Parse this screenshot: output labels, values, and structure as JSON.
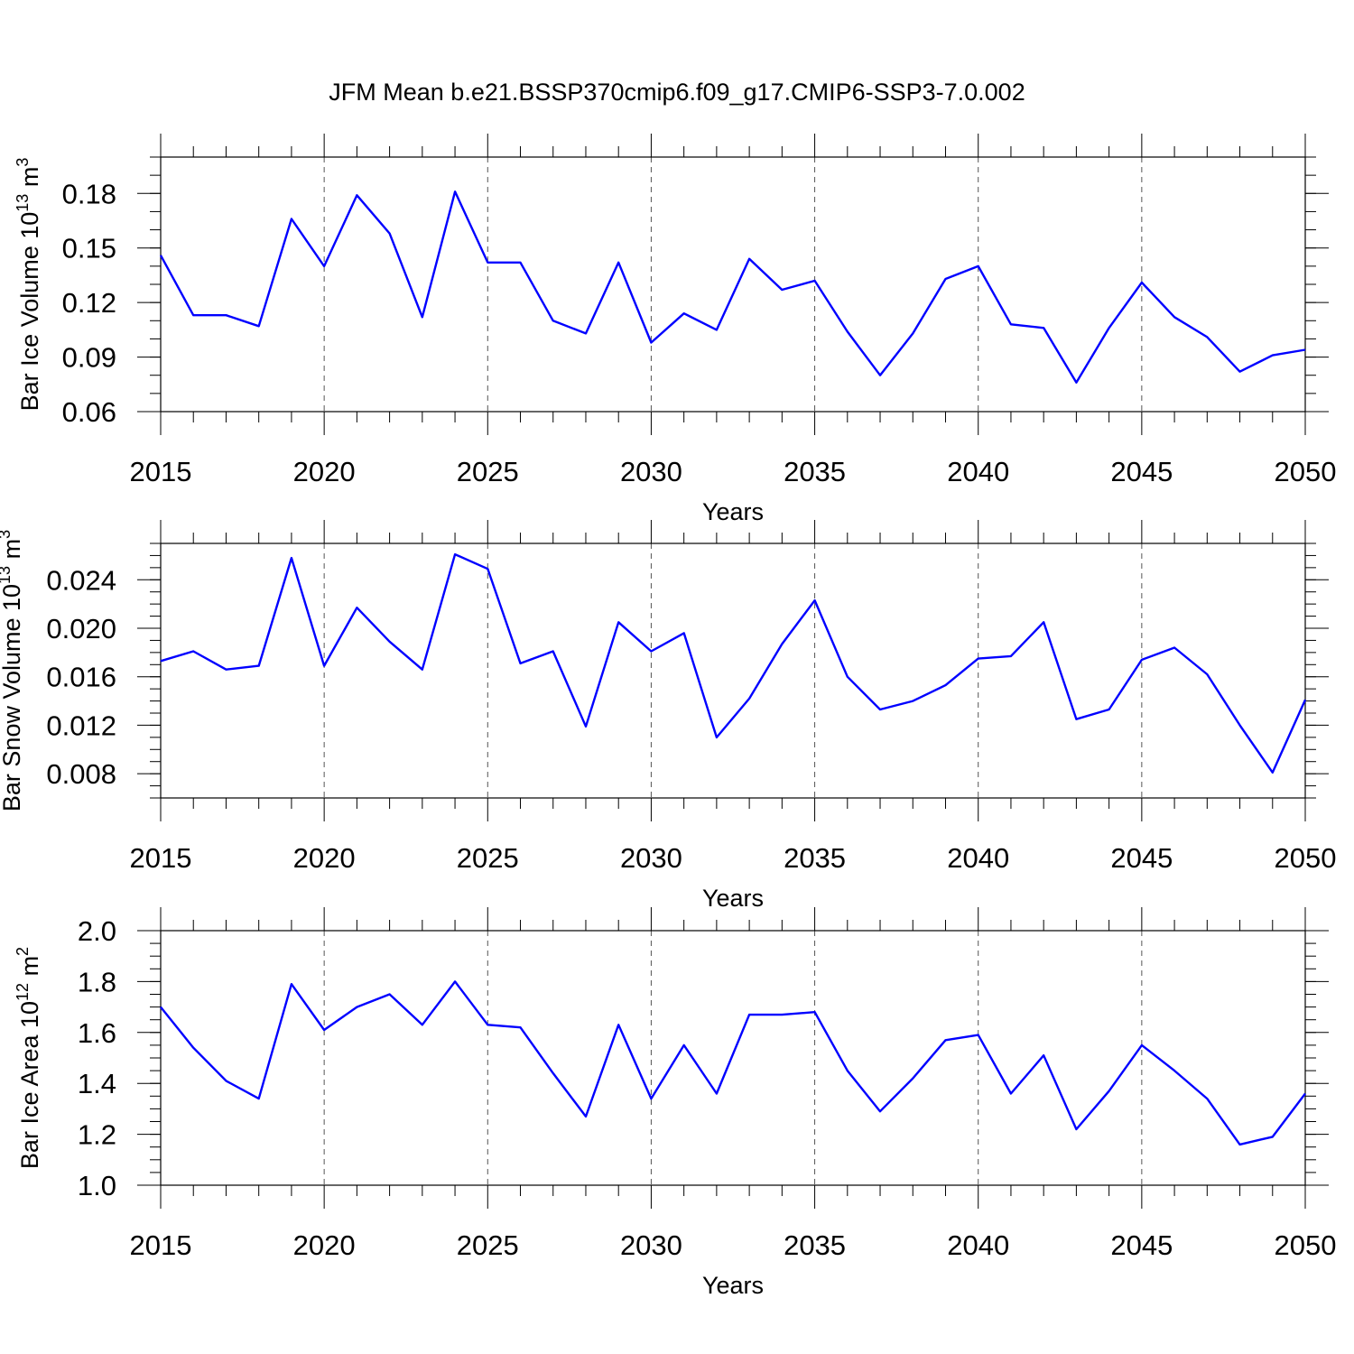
{
  "title": "JFM Mean b.e21.BSSP370cmip6.f09_g17.CMIP6-SSP3-7.0.002",
  "colors": {
    "line": "#0000ff",
    "axis": "#000000",
    "grid": "#555555"
  },
  "chart_data": [
    {
      "type": "line",
      "ylabel": {
        "text": "Bar Ice Volume 10",
        "sup": "13",
        "unit": " m",
        "unit_sup": "3"
      },
      "xlabel": "Years",
      "xlim": [
        2015,
        2050
      ],
      "ylim": [
        0.06,
        0.2
      ],
      "yticks": [
        0.06,
        0.09,
        0.12,
        0.15,
        0.18
      ],
      "ytick_labels": [
        "0.06",
        "0.09",
        "0.12",
        "0.15",
        "0.18"
      ],
      "yminor": 0.01,
      "xticks": [
        2015,
        2020,
        2025,
        2030,
        2035,
        2040,
        2045,
        2050
      ],
      "xtick_labels": [
        "2015",
        "2020",
        "2025",
        "2030",
        "2035",
        "2040",
        "2045",
        "2050"
      ],
      "grid": "vertical dashed at major x ticks",
      "x": [
        2015,
        2016,
        2017,
        2018,
        2019,
        2020,
        2021,
        2022,
        2023,
        2024,
        2025,
        2026,
        2027,
        2028,
        2029,
        2030,
        2031,
        2032,
        2033,
        2034,
        2035,
        2036,
        2037,
        2038,
        2039,
        2040,
        2041,
        2042,
        2043,
        2044,
        2045,
        2046,
        2047,
        2048,
        2049,
        2050
      ],
      "values": [
        0.146,
        0.113,
        0.113,
        0.107,
        0.166,
        0.14,
        0.179,
        0.158,
        0.112,
        0.181,
        0.142,
        0.142,
        0.11,
        0.103,
        0.142,
        0.098,
        0.114,
        0.105,
        0.144,
        0.127,
        0.132,
        0.104,
        0.08,
        0.103,
        0.133,
        0.14,
        0.108,
        0.106,
        0.076,
        0.106,
        0.131,
        0.112,
        0.101,
        0.082,
        0.091,
        0.094
      ]
    },
    {
      "type": "line",
      "ylabel": {
        "text": "Bar Snow Volume 10",
        "sup": "13",
        "unit": " m",
        "unit_sup": "3"
      },
      "xlabel": "Years",
      "xlim": [
        2015,
        2050
      ],
      "ylim": [
        0.006,
        0.027
      ],
      "yticks": [
        0.008,
        0.012,
        0.016,
        0.02,
        0.024
      ],
      "ytick_labels": [
        "0.008",
        "0.012",
        "0.016",
        "0.020",
        "0.024"
      ],
      "yminor": 0.001,
      "xticks": [
        2015,
        2020,
        2025,
        2030,
        2035,
        2040,
        2045,
        2050
      ],
      "xtick_labels": [
        "2015",
        "2020",
        "2025",
        "2030",
        "2035",
        "2040",
        "2045",
        "2050"
      ],
      "grid": "vertical dashed at major x ticks",
      "x": [
        2015,
        2016,
        2017,
        2018,
        2019,
        2020,
        2021,
        2022,
        2023,
        2024,
        2025,
        2026,
        2027,
        2028,
        2029,
        2030,
        2031,
        2032,
        2033,
        2034,
        2035,
        2036,
        2037,
        2038,
        2039,
        2040,
        2041,
        2042,
        2043,
        2044,
        2045,
        2046,
        2047,
        2048,
        2049,
        2050
      ],
      "values": [
        0.0173,
        0.0181,
        0.0166,
        0.0169,
        0.0258,
        0.0169,
        0.0217,
        0.0189,
        0.0166,
        0.0261,
        0.0249,
        0.0171,
        0.0181,
        0.0119,
        0.0205,
        0.0181,
        0.0196,
        0.011,
        0.0142,
        0.0187,
        0.0223,
        0.016,
        0.0133,
        0.014,
        0.0153,
        0.0175,
        0.0177,
        0.0205,
        0.0125,
        0.0133,
        0.0174,
        0.0184,
        0.0162,
        0.012,
        0.0081,
        0.0141
      ]
    },
    {
      "type": "line",
      "ylabel": {
        "text": "Bar Ice Area 10",
        "sup": "12",
        "unit": " m",
        "unit_sup": "2"
      },
      "xlabel": "Years",
      "xlim": [
        2015,
        2050
      ],
      "ylim": [
        1.0,
        2.0
      ],
      "yticks": [
        1.0,
        1.2,
        1.4,
        1.6,
        1.8,
        2.0
      ],
      "ytick_labels": [
        "1.0",
        "1.2",
        "1.4",
        "1.6",
        "1.8",
        "2.0"
      ],
      "yminor": 0.05,
      "xticks": [
        2015,
        2020,
        2025,
        2030,
        2035,
        2040,
        2045,
        2050
      ],
      "xtick_labels": [
        "2015",
        "2020",
        "2025",
        "2030",
        "2035",
        "2040",
        "2045",
        "2050"
      ],
      "grid": "vertical dashed at major x ticks",
      "x": [
        2015,
        2016,
        2017,
        2018,
        2019,
        2020,
        2021,
        2022,
        2023,
        2024,
        2025,
        2026,
        2027,
        2028,
        2029,
        2030,
        2031,
        2032,
        2033,
        2034,
        2035,
        2036,
        2037,
        2038,
        2039,
        2040,
        2041,
        2042,
        2043,
        2044,
        2045,
        2046,
        2047,
        2048,
        2049,
        2050
      ],
      "values": [
        1.7,
        1.54,
        1.41,
        1.34,
        1.79,
        1.61,
        1.7,
        1.75,
        1.63,
        1.8,
        1.63,
        1.62,
        1.44,
        1.27,
        1.63,
        1.34,
        1.55,
        1.36,
        1.67,
        1.67,
        1.68,
        1.45,
        1.29,
        1.42,
        1.57,
        1.59,
        1.36,
        1.51,
        1.22,
        1.37,
        1.55,
        1.45,
        1.34,
        1.16,
        1.19,
        1.36
      ]
    }
  ]
}
